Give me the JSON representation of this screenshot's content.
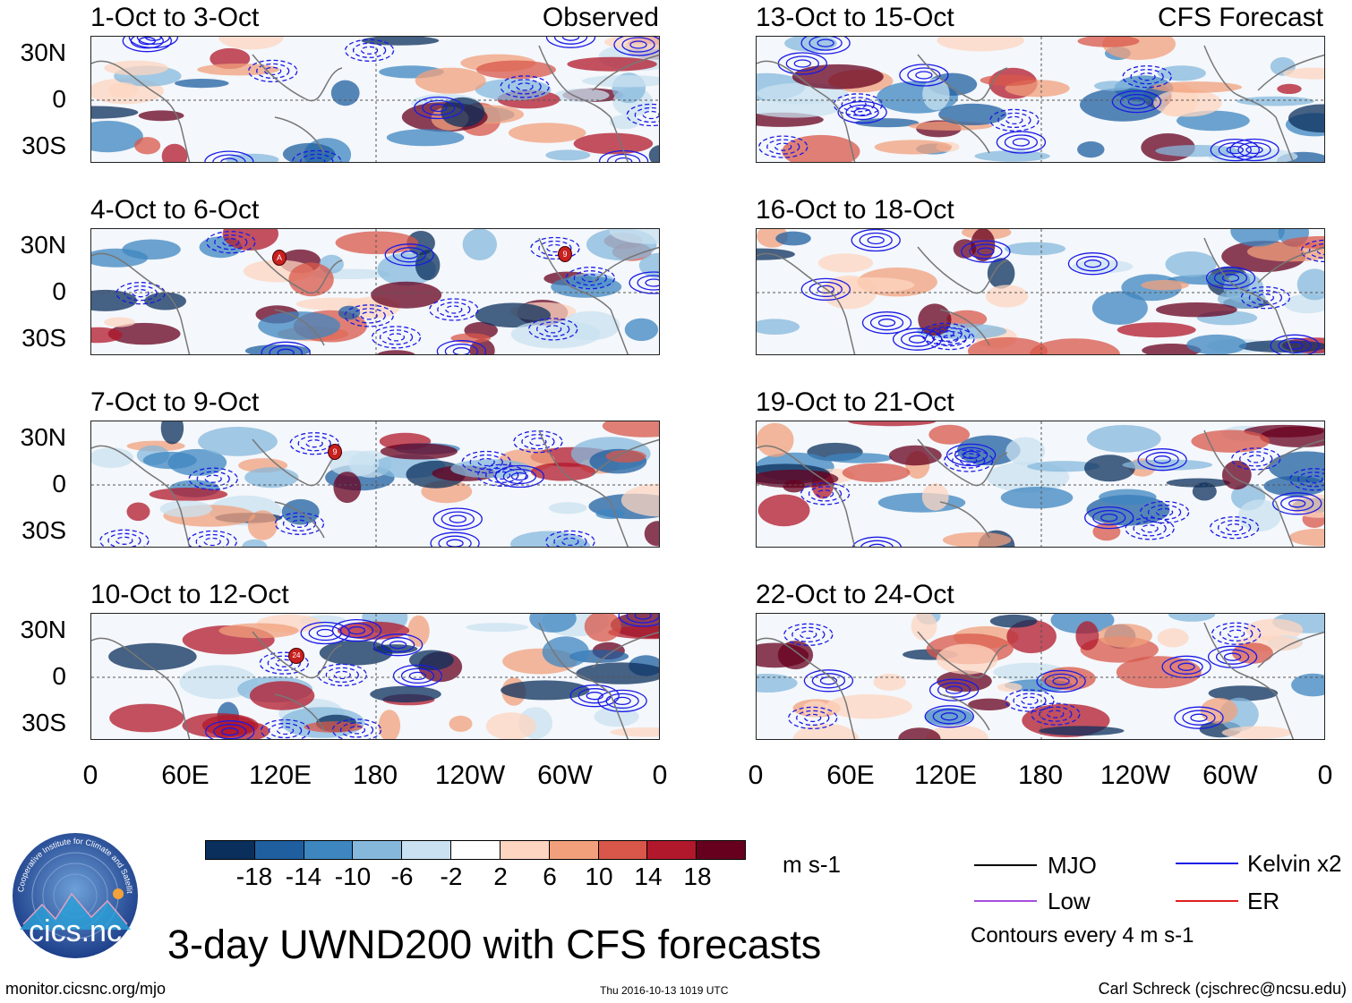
{
  "headers": {
    "observed": "Observed",
    "forecast": "CFS Forecast"
  },
  "panels_left": [
    {
      "title": "1-Oct to 3-Oct"
    },
    {
      "title": "4-Oct to 6-Oct"
    },
    {
      "title": "7-Oct to 9-Oct"
    },
    {
      "title": "10-Oct to 12-Oct"
    }
  ],
  "panels_right": [
    {
      "title": "13-Oct to 15-Oct"
    },
    {
      "title": "16-Oct to 18-Oct"
    },
    {
      "title": "19-Oct to 21-Oct"
    },
    {
      "title": "22-Oct to 24-Oct"
    }
  ],
  "lat_labels": [
    "30N",
    "0",
    "30S"
  ],
  "lon_labels": [
    "0",
    "60E",
    "120E",
    "180",
    "120W",
    "60W",
    "0"
  ],
  "storm_markers": [
    {
      "panel": 1,
      "label": "A"
    },
    {
      "panel": 1,
      "label": "9"
    },
    {
      "panel": 2,
      "label": "9"
    },
    {
      "panel": 3,
      "label": "24"
    }
  ],
  "colorbar": {
    "colors": [
      "#0b2f5c",
      "#1f5fa0",
      "#3d86c0",
      "#86b8dc",
      "#c9e1f0",
      "#ffffff",
      "#fdd5c0",
      "#f2a07c",
      "#d8574a",
      "#b2182b",
      "#67001f"
    ],
    "ticks": [
      "-18",
      "-14",
      "-10",
      "-6",
      "-2",
      "2",
      "6",
      "10",
      "14",
      "18"
    ],
    "units": "m s-1"
  },
  "legend": {
    "items": [
      {
        "label": "MJO",
        "color": "#000000"
      },
      {
        "label": "Kelvin x2",
        "color": "#1a1ae6"
      },
      {
        "label": "Low",
        "color": "#a64ddb"
      },
      {
        "label": "ER",
        "color": "#e02020"
      }
    ],
    "note": "Contours every 4 m s-1"
  },
  "main_title": "3-day UWND200 with CFS forecasts",
  "logo": {
    "text": "cics.nc",
    "ring_text": "Cooperative Institute for Climate and Satellites"
  },
  "footer": {
    "url": "monitor.cicsnc.org/mjo",
    "date": "Thu 2016-10-13 1019 UTC",
    "author": "Carl Schreck (cjschrec@ncsu.edu)"
  }
}
